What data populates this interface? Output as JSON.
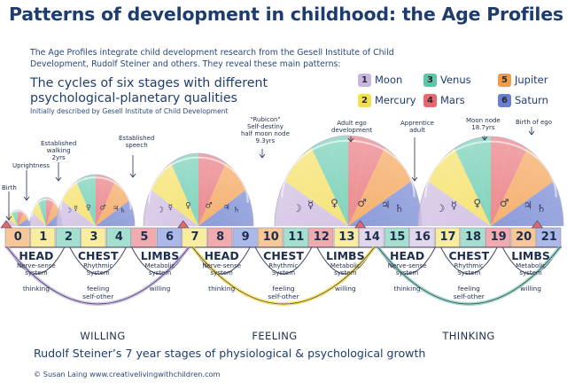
{
  "title": "Patterns of development in childhood: the Age Profiles",
  "intro": "The Age Profiles integrate child development research from the Gesell Institute of Child Development, Rudolf Steiner and others. They reveal these main patterns:",
  "heading": "The cycles of six stages with different psychological-planetary qualities",
  "subheading": "Initially described by Gesell Institute of Child Development",
  "legend": [
    {
      "num": "1",
      "label": "Moon",
      "color": "#c9b6de"
    },
    {
      "num": "3",
      "label": "Venus",
      "color": "#5cc6a9"
    },
    {
      "num": "5",
      "label": "Jupiter",
      "color": "#f29a45"
    },
    {
      "num": "2",
      "label": "Mercury",
      "color": "#f3dd52"
    },
    {
      "num": "4",
      "label": "Mars",
      "color": "#e6676d"
    },
    {
      "num": "6",
      "label": "Saturn",
      "color": "#6a7fd0"
    }
  ],
  "annotations": {
    "birth": "Birth",
    "uprightness": "Uprightness",
    "walking": "Established\nwalking\n2yrs",
    "speech": "Established\nspeech",
    "rubicon": "\"Rubicon\"\nSelf-destiny\nhalf moon node\n9.3yrs",
    "ego_dev": "Adult ego\ndevelopment",
    "apprentice": "Apprentice\nadult",
    "moon_node": "Moon node\n18.7yrs",
    "birth_ego": "Birth of ego"
  },
  "ages": [
    "0",
    "1",
    "2",
    "3",
    "4",
    "5",
    "6",
    "7",
    "8",
    "9",
    "10",
    "11",
    "12",
    "13",
    "14",
    "15",
    "16",
    "17",
    "18",
    "19",
    "20",
    "21"
  ],
  "segments": [
    {
      "title": "HEAD",
      "sub": "Nerve-sense\nsystem"
    },
    {
      "title": "CHEST",
      "sub": "Rhythmic\nSystem"
    },
    {
      "title": "LIMBS",
      "sub": "Metabolic\nsystem"
    },
    {
      "title": "HEAD",
      "sub": "Nerve-sense\nsystem"
    },
    {
      "title": "CHEST",
      "sub": "Rhythmic\nSystem"
    },
    {
      "title": "LIMBS",
      "sub": "Metabolic\nsystem"
    },
    {
      "title": "HEAD",
      "sub": "Nerve-sense\nsystem"
    },
    {
      "title": "CHEST",
      "sub": "Rhythmic\nSystem"
    },
    {
      "title": "LIMBS",
      "sub": "Metabolic\nsystem"
    }
  ],
  "arc_labels": [
    {
      "text": "thinking"
    },
    {
      "text": "feeling\nself-other"
    },
    {
      "text": "willing"
    },
    {
      "text": "thinking"
    },
    {
      "text": "feeling\nself-other"
    },
    {
      "text": "willing"
    },
    {
      "text": "thinking"
    },
    {
      "text": "feeling\nself-other"
    },
    {
      "text": "willing"
    }
  ],
  "phases": [
    "WILLING",
    "FEELING",
    "THINKING"
  ],
  "footer": "Rudolf Steiner’s 7 year stages of physiological & psychological growth",
  "credit": "© Susan Laing   www.creativelivingwithchildren.com",
  "colors": {
    "moon": "#c9b6de",
    "mercury": "#f3dd52",
    "venus": "#5cc6a9",
    "mars": "#e6676d",
    "jupiter": "#f29a45",
    "saturn": "#6a7fd0",
    "willing_arc": "#c9b6de",
    "feeling_arc": "#f3dd52",
    "thinking_arc": "#8fd2c0"
  }
}
